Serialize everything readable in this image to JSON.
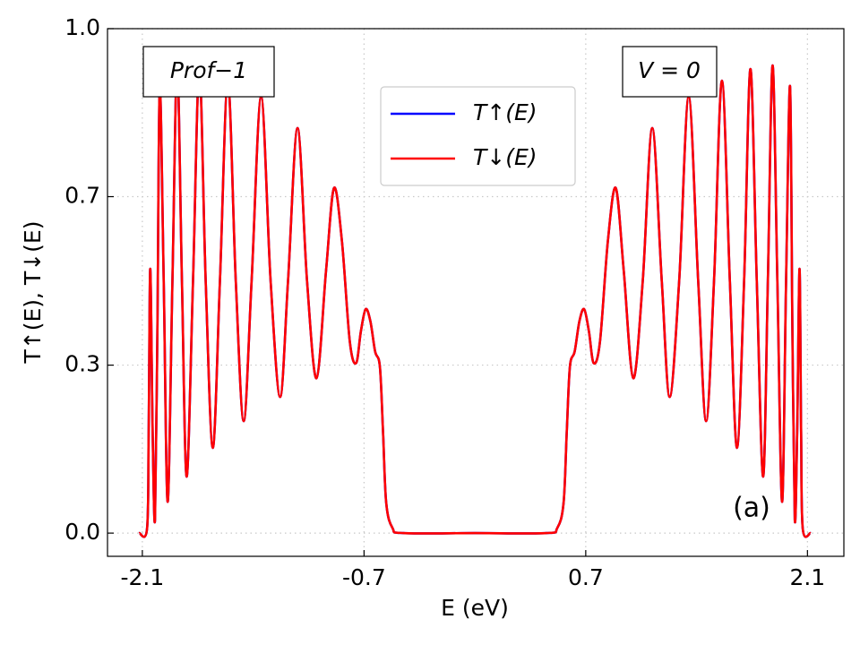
{
  "chart_data": {
    "type": "line",
    "xlabel": "E (eV)",
    "ylabel": "T↑(E),  T↓(E)",
    "annotations": [
      "Prof−1",
      "V = 0",
      "(a)"
    ],
    "x": [
      -2.12,
      -2.07,
      -2.06,
      -2.05,
      -2.035,
      -2.02,
      -2.005,
      -1.99,
      -1.965,
      -1.94,
      -1.91,
      -1.88,
      -1.85,
      -1.82,
      -1.78,
      -1.74,
      -1.7,
      -1.655,
      -1.61,
      -1.56,
      -1.51,
      -1.46,
      -1.41,
      -1.35,
      -1.29,
      -1.23,
      -1.18,
      -1.12,
      -1.06,
      -1.0,
      -0.94,
      -0.89,
      -0.84,
      -0.79,
      -0.75,
      -0.72,
      -0.69,
      -0.66,
      -0.63,
      -0.6,
      -0.58,
      -0.56,
      -0.52,
      -0.45,
      0.0,
      0.45,
      0.52,
      0.56,
      0.58,
      0.6,
      0.63,
      0.66,
      0.69,
      0.72,
      0.75,
      0.79,
      0.84,
      0.89,
      0.94,
      1.0,
      1.06,
      1.12,
      1.18,
      1.23,
      1.29,
      1.35,
      1.41,
      1.46,
      1.51,
      1.56,
      1.61,
      1.655,
      1.7,
      1.74,
      1.78,
      1.82,
      1.85,
      1.88,
      1.91,
      1.94,
      1.965,
      1.99,
      2.005,
      2.02,
      2.035,
      2.05,
      2.06,
      2.07,
      2.12
    ],
    "series": [
      {
        "name": "T↑(E)",
        "color": "#0000ff",
        "values": [
          0,
          0.01,
          0.2,
          0.524,
          0.2,
          0.027,
          0.4,
          0.886,
          0.5,
          0.062,
          0.5,
          0.927,
          0.5,
          0.112,
          0.5,
          0.92,
          0.5,
          0.169,
          0.5,
          0.897,
          0.5,
          0.222,
          0.5,
          0.865,
          0.5,
          0.27,
          0.5,
          0.803,
          0.5,
          0.307,
          0.52,
          0.684,
          0.58,
          0.38,
          0.337,
          0.4,
          0.444,
          0.42,
          0.36,
          0.33,
          0.2,
          0.06,
          0.01,
          0,
          0,
          0,
          0.01,
          0.06,
          0.2,
          0.33,
          0.36,
          0.42,
          0.444,
          0.4,
          0.337,
          0.38,
          0.58,
          0.684,
          0.52,
          0.307,
          0.5,
          0.803,
          0.5,
          0.27,
          0.5,
          0.865,
          0.5,
          0.222,
          0.5,
          0.897,
          0.5,
          0.169,
          0.5,
          0.92,
          0.5,
          0.112,
          0.5,
          0.927,
          0.5,
          0.062,
          0.5,
          0.886,
          0.4,
          0.027,
          0.2,
          0.524,
          0.2,
          0.01,
          0
        ]
      },
      {
        "name": "T↓(E)",
        "color": "#ff0000",
        "values": [
          0,
          0.01,
          0.2,
          0.524,
          0.2,
          0.027,
          0.4,
          0.886,
          0.5,
          0.062,
          0.5,
          0.927,
          0.5,
          0.112,
          0.5,
          0.92,
          0.5,
          0.169,
          0.5,
          0.897,
          0.5,
          0.222,
          0.5,
          0.865,
          0.5,
          0.27,
          0.5,
          0.803,
          0.5,
          0.307,
          0.52,
          0.684,
          0.58,
          0.38,
          0.337,
          0.4,
          0.444,
          0.42,
          0.36,
          0.33,
          0.2,
          0.06,
          0.01,
          0,
          0,
          0,
          0.01,
          0.06,
          0.2,
          0.33,
          0.36,
          0.42,
          0.444,
          0.4,
          0.337,
          0.38,
          0.58,
          0.684,
          0.52,
          0.307,
          0.5,
          0.803,
          0.5,
          0.27,
          0.5,
          0.865,
          0.5,
          0.222,
          0.5,
          0.897,
          0.5,
          0.169,
          0.5,
          0.92,
          0.5,
          0.112,
          0.5,
          0.927,
          0.5,
          0.062,
          0.5,
          0.886,
          0.4,
          0.027,
          0.2,
          0.524,
          0.2,
          0.01,
          0
        ]
      }
    ],
    "xlim": [
      -2.32,
      2.33
    ],
    "ylim": [
      -0.046,
      1.0
    ],
    "xticks": [
      -2.1,
      -0.7,
      0.7,
      2.1
    ],
    "yticks": [
      {
        "value": 0,
        "label": "0.0"
      },
      {
        "value": 0.333,
        "label": "0.3"
      },
      {
        "value": 0.667,
        "label": "0.7"
      },
      {
        "value": 1.0,
        "label": "1.0"
      }
    ],
    "grid": true
  }
}
